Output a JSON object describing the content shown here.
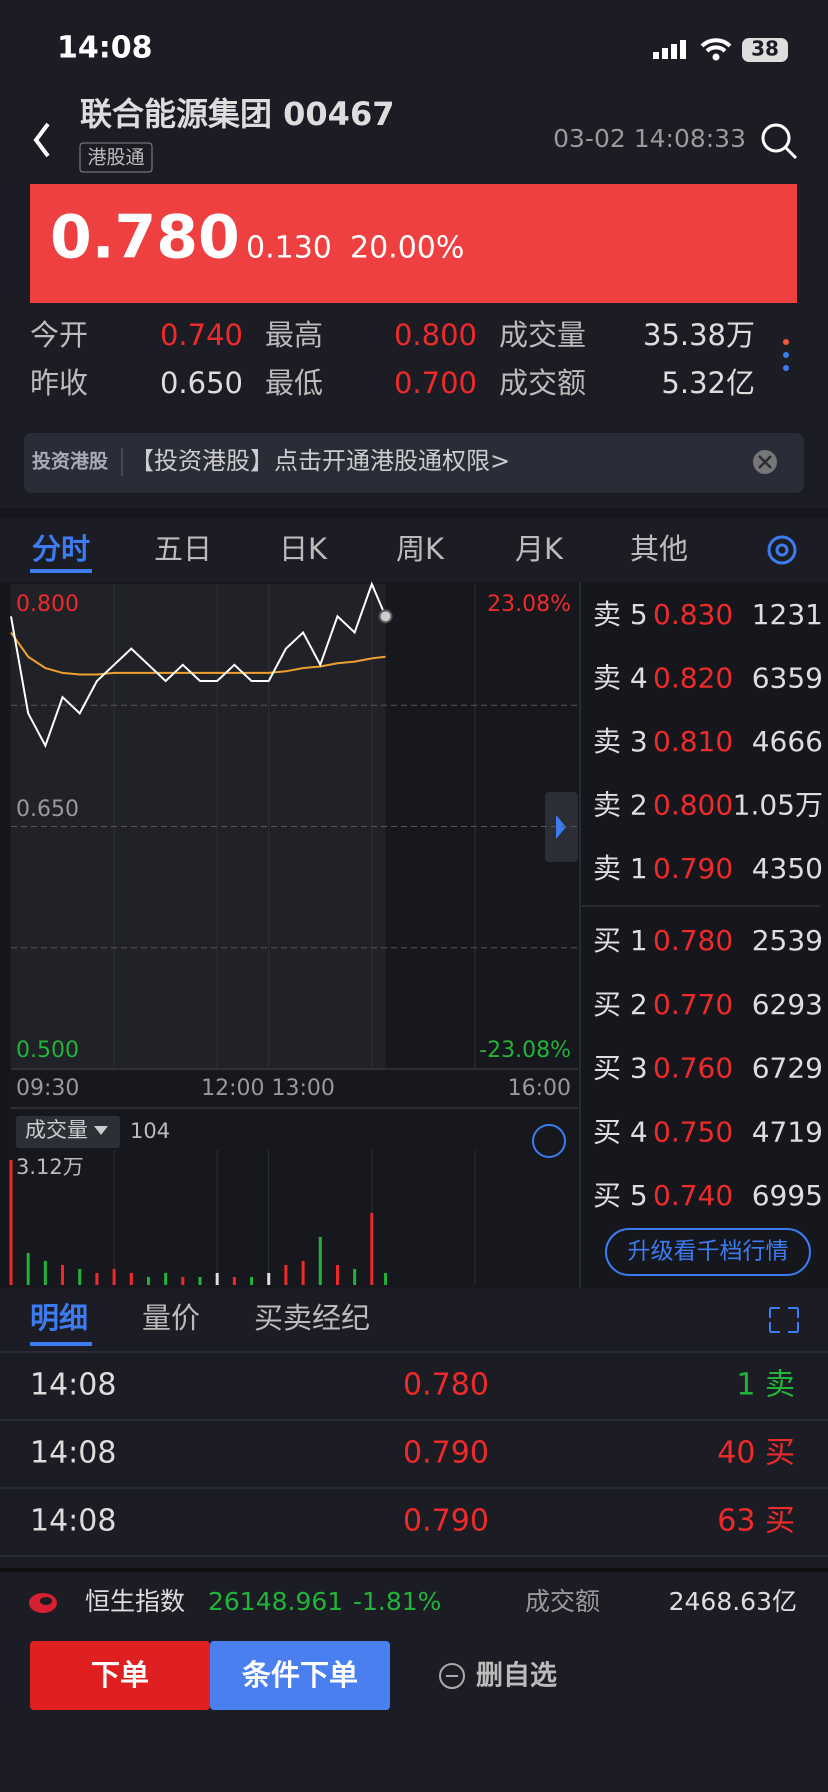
{
  "status": {
    "time": "14:08",
    "battery": "38"
  },
  "header": {
    "name": "联合能源集团 00467",
    "tag": "港股通",
    "datetime": "03-02 14:08:33"
  },
  "quote": {
    "price": "0.780",
    "change": "0.130",
    "percent": "20.00%"
  },
  "stats": [
    [
      "今开",
      "0.740",
      "最高",
      "0.800",
      "成交量",
      "35.38万"
    ],
    [
      "昨收",
      "0.650",
      "最低",
      "0.700",
      "成交额",
      "5.32亿"
    ]
  ],
  "banner": {
    "logo": "投资港股",
    "text": "【投资港股】点击开通港股通权限>"
  },
  "tabs": [
    "分时",
    "五日",
    "日K",
    "周K",
    "月K",
    "其他"
  ],
  "intraday": {
    "high_label": "0.800",
    "mid_label": "0.650",
    "low_label": "0.500",
    "high_pct": "23.08%",
    "low_pct": "-23.08%",
    "time_labels": [
      "09:30",
      "12:00 13:00",
      "16:00"
    ],
    "xlim": [
      0,
      330
    ],
    "ylim": [
      0.5,
      0.8
    ],
    "x": [
      0,
      10,
      20,
      30,
      40,
      50,
      60,
      70,
      80,
      90,
      100,
      110,
      120,
      130,
      140,
      150,
      160,
      170,
      180,
      190,
      200,
      210,
      218
    ],
    "price": [
      0.78,
      0.72,
      0.7,
      0.73,
      0.72,
      0.74,
      0.75,
      0.76,
      0.75,
      0.74,
      0.75,
      0.74,
      0.74,
      0.75,
      0.74,
      0.74,
      0.76,
      0.77,
      0.75,
      0.78,
      0.77,
      0.8,
      0.78
    ],
    "average": [
      0.77,
      0.755,
      0.748,
      0.745,
      0.744,
      0.744,
      0.745,
      0.745,
      0.745,
      0.745,
      0.745,
      0.745,
      0.745,
      0.745,
      0.745,
      0.745,
      0.746,
      0.748,
      0.749,
      0.751,
      0.752,
      0.754,
      0.755
    ],
    "volume_label": "成交量",
    "volume_current": "104",
    "volume_max_label": "3.12万",
    "volume_ylim": [
      0,
      3.12
    ],
    "volume": [
      3.12,
      0.8,
      0.6,
      0.5,
      0.4,
      0.3,
      0.4,
      0.3,
      0.2,
      0.3,
      0.2,
      0.2,
      0.3,
      0.2,
      0.2,
      0.3,
      0.5,
      0.6,
      1.2,
      0.5,
      0.4,
      1.8,
      0.3
    ]
  },
  "order_book": {
    "asks": [
      {
        "label": "卖 5",
        "price": "0.830",
        "volume": "1231"
      },
      {
        "label": "卖 4",
        "price": "0.820",
        "volume": "6359"
      },
      {
        "label": "卖 3",
        "price": "0.810",
        "volume": "4666"
      },
      {
        "label": "卖 2",
        "price": "0.800",
        "volume": "1.05万"
      },
      {
        "label": "卖 1",
        "price": "0.790",
        "volume": "4350"
      }
    ],
    "bids": [
      {
        "label": "买 1",
        "price": "0.780",
        "volume": "2539"
      },
      {
        "label": "买 2",
        "price": "0.770",
        "volume": "6293"
      },
      {
        "label": "买 3",
        "price": "0.760",
        "volume": "6729"
      },
      {
        "label": "买 4",
        "price": "0.750",
        "volume": "4719"
      },
      {
        "label": "买 5",
        "price": "0.740",
        "volume": "6995"
      }
    ],
    "upgrade": "升级看千档行情"
  },
  "detail_tabs": [
    "明细",
    "量价",
    "买卖经纪"
  ],
  "trades": [
    {
      "time": "14:08",
      "price": "0.780",
      "volume": "1 卖",
      "side": "sell"
    },
    {
      "time": "14:08",
      "price": "0.790",
      "volume": "40 买",
      "side": "buy"
    },
    {
      "time": "14:08",
      "price": "0.790",
      "volume": "63 买",
      "side": "buy"
    }
  ],
  "index": {
    "name": "恒生指数",
    "value": "26148.961",
    "change": "-1.81%",
    "turnover_label": "成交额",
    "turnover": "2468.63亿"
  },
  "actions": {
    "order": "下单",
    "conditional": "条件下单",
    "remove": "删自选"
  }
}
